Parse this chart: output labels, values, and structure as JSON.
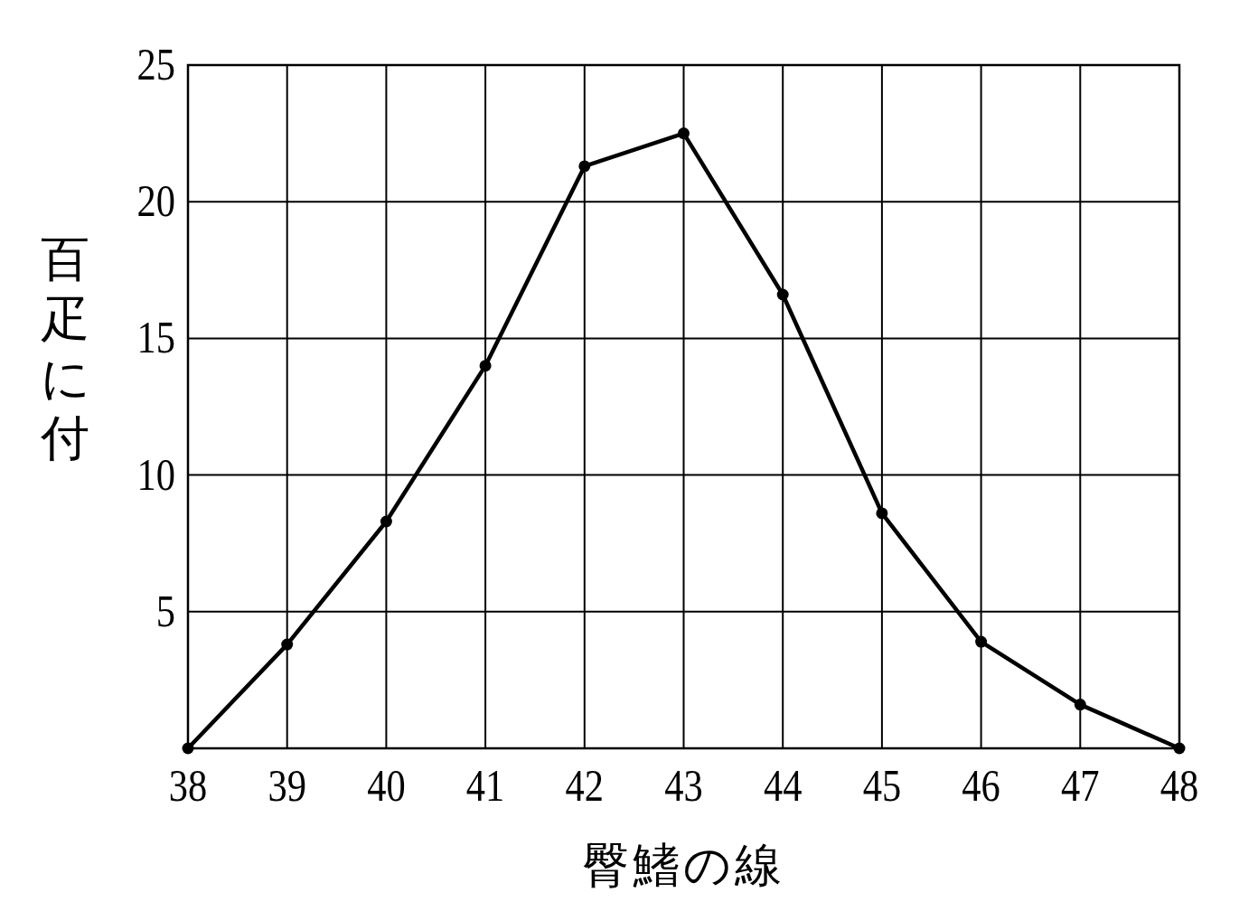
{
  "chart_data": {
    "type": "line",
    "xlabel": "臀鰭の線",
    "ylabel": "百疋に付",
    "x": [
      38,
      39,
      40,
      41,
      42,
      43,
      44,
      45,
      46,
      47,
      48
    ],
    "series": [
      {
        "color": "#000000",
        "values": [
          0,
          3.8,
          8.3,
          14.0,
          21.3,
          22.5,
          16.6,
          8.6,
          3.9,
          1.6,
          0
        ]
      }
    ],
    "xlim": [
      38,
      48
    ],
    "ylim": [
      0,
      25
    ],
    "xticks": [
      38,
      39,
      40,
      41,
      42,
      43,
      44,
      45,
      46,
      47,
      48
    ],
    "yticks": [
      5,
      10,
      15,
      20,
      25
    ],
    "grid": true,
    "marker": "circle",
    "line_style": "solid"
  }
}
